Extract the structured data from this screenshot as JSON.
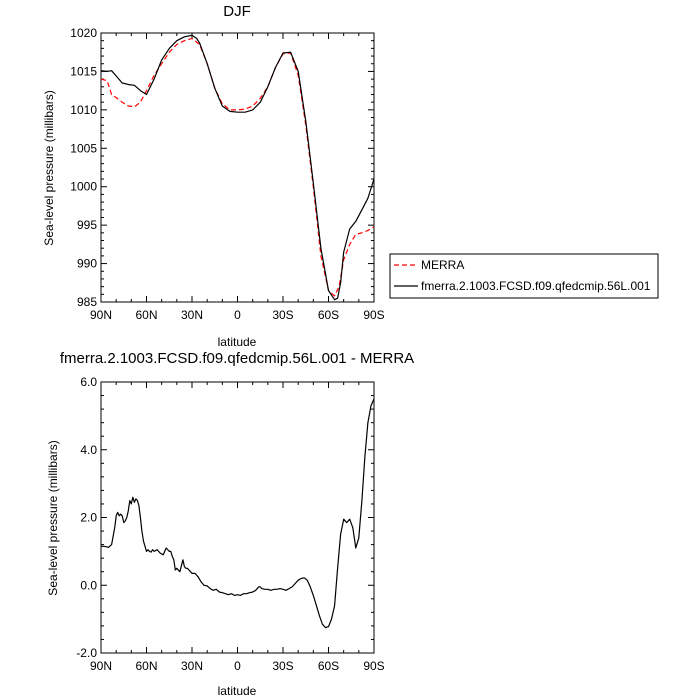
{
  "chart_data": [
    {
      "type": "line",
      "title": "DJF",
      "xlabel": "latitude",
      "ylabel": "Sea-level pressure (millibars)",
      "xlim": [
        -90,
        90
      ],
      "ylim": [
        985,
        1020
      ],
      "x_ticks": [
        {
          "value": -90,
          "label": "90N"
        },
        {
          "value": -60,
          "label": "60N"
        },
        {
          "value": -30,
          "label": "30N"
        },
        {
          "value": 0,
          "label": "0"
        },
        {
          "value": 30,
          "label": "30S"
        },
        {
          "value": 60,
          "label": "60S"
        },
        {
          "value": 90,
          "label": "90S"
        }
      ],
      "y_ticks": [
        985,
        990,
        995,
        1000,
        1005,
        1010,
        1015,
        1020
      ],
      "legend_position": "right",
      "series": [
        {
          "name": "MERRA",
          "color": "#ff0000",
          "dash": "dashed",
          "x": [
            -90,
            -86,
            -83,
            -80,
            -76,
            -72,
            -68,
            -64,
            -60,
            -55,
            -50,
            -45,
            -40,
            -35,
            -30,
            -25,
            -20,
            -15,
            -10,
            -5,
            0,
            5,
            10,
            15,
            20,
            25,
            30,
            35,
            40,
            45,
            50,
            55,
            60,
            64,
            67,
            70,
            74,
            78,
            82,
            86,
            90
          ],
          "y": [
            1014.0,
            1013.8,
            1012.0,
            1011.6,
            1011.0,
            1010.5,
            1010.4,
            1011.0,
            1012.5,
            1014.5,
            1016.0,
            1017.5,
            1018.5,
            1019.0,
            1019.3,
            1018.5,
            1016.0,
            1012.8,
            1010.8,
            1010.0,
            1010.0,
            1010.1,
            1010.5,
            1011.5,
            1013.0,
            1015.5,
            1017.3,
            1017.4,
            1014.5,
            1008.0,
            1000.0,
            991.0,
            986.5,
            985.8,
            987.0,
            990.5,
            992.5,
            993.8,
            994.0,
            994.3,
            994.8
          ]
        },
        {
          "name": "fmerra.2.1003.FCSD.f09.qfedcmip.56L.001",
          "color": "#000000",
          "dash": "solid",
          "x": [
            -90,
            -86,
            -83,
            -80,
            -76,
            -72,
            -68,
            -64,
            -60,
            -55,
            -50,
            -45,
            -40,
            -35,
            -30,
            -27,
            -25,
            -20,
            -15,
            -10,
            -5,
            0,
            5,
            10,
            15,
            20,
            25,
            30,
            35,
            40,
            45,
            50,
            55,
            60,
            64,
            66,
            68,
            70,
            74,
            78,
            82,
            86,
            90
          ],
          "y": [
            1015.1,
            1015.0,
            1015.1,
            1014.4,
            1013.5,
            1013.3,
            1013.2,
            1012.5,
            1012.0,
            1014.0,
            1016.5,
            1018.0,
            1019.0,
            1019.5,
            1019.7,
            1019.3,
            1018.7,
            1016.0,
            1012.8,
            1010.5,
            1009.8,
            1009.7,
            1009.7,
            1010.0,
            1011.0,
            1013.0,
            1015.5,
            1017.4,
            1017.5,
            1015.0,
            1008.5,
            1000.5,
            992.0,
            986.5,
            985.3,
            985.5,
            987.5,
            991.5,
            994.5,
            995.5,
            997.0,
            998.5,
            1001.0
          ]
        }
      ]
    },
    {
      "type": "line",
      "title": "fmerra.2.1003.FCSD.f09.qfedcmip.56L.001 - MERRA",
      "xlabel": "latitude",
      "ylabel": "Sea-level pressure (millibars)",
      "xlim": [
        -90,
        90
      ],
      "ylim": [
        -2.0,
        6.0
      ],
      "x_ticks": [
        {
          "value": -90,
          "label": "90N"
        },
        {
          "value": -60,
          "label": "60N"
        },
        {
          "value": -30,
          "label": "30N"
        },
        {
          "value": 0,
          "label": "0"
        },
        {
          "value": 30,
          "label": "30S"
        },
        {
          "value": 60,
          "label": "60S"
        },
        {
          "value": 90,
          "label": "90S"
        }
      ],
      "y_ticks": [
        {
          "value": -2.0,
          "label": "-2.0"
        },
        {
          "value": 0.0,
          "label": "0.0"
        },
        {
          "value": 2.0,
          "label": "2.0"
        },
        {
          "value": 4.0,
          "label": "4.0"
        },
        {
          "value": 6.0,
          "label": "6.0"
        }
      ],
      "series": [
        {
          "color": "#000000",
          "dash": "solid",
          "x": [
            -90,
            -88,
            -85,
            -83,
            -81,
            -80,
            -79,
            -78,
            -77,
            -76,
            -75,
            -74,
            -73,
            -72,
            -71,
            -70,
            -69,
            -68,
            -67,
            -66,
            -65,
            -64,
            -63,
            -62,
            -61,
            -60,
            -59,
            -58,
            -57,
            -56,
            -55,
            -53,
            -51,
            -49,
            -47,
            -45,
            -44,
            -43,
            -42,
            -41,
            -40,
            -38,
            -36,
            -35,
            -34,
            -33,
            -32,
            -31,
            -30,
            -28,
            -26,
            -24,
            -22,
            -20,
            -18,
            -16,
            -14,
            -12,
            -10,
            -8,
            -6,
            -4,
            -2,
            0,
            2,
            4,
            6,
            8,
            10,
            12,
            14,
            15,
            16,
            18,
            20,
            22,
            24,
            26,
            28,
            30,
            32,
            34,
            36,
            38,
            40,
            42,
            44,
            46,
            48,
            50,
            52,
            54,
            56,
            58,
            60,
            62,
            64,
            66,
            68,
            70,
            72,
            74,
            76,
            78,
            80,
            82,
            84,
            86,
            88,
            90
          ],
          "y": [
            1.15,
            1.15,
            1.12,
            1.2,
            1.7,
            2.05,
            2.15,
            2.05,
            2.1,
            2.05,
            1.85,
            1.9,
            2.0,
            2.2,
            2.5,
            2.4,
            2.6,
            2.45,
            2.55,
            2.5,
            2.35,
            2.0,
            1.6,
            1.3,
            1.15,
            1.0,
            1.05,
            1.0,
            0.98,
            1.05,
            1.0,
            1.05,
            0.95,
            0.9,
            1.1,
            1.0,
            1.0,
            0.85,
            0.75,
            0.45,
            0.5,
            0.4,
            0.75,
            0.55,
            0.5,
            0.5,
            0.45,
            0.4,
            0.35,
            0.35,
            0.25,
            0.1,
            0.0,
            -0.02,
            -0.1,
            -0.15,
            -0.12,
            -0.2,
            -0.22,
            -0.25,
            -0.28,
            -0.25,
            -0.3,
            -0.28,
            -0.3,
            -0.25,
            -0.25,
            -0.22,
            -0.2,
            -0.15,
            -0.05,
            -0.05,
            -0.1,
            -0.12,
            -0.12,
            -0.15,
            -0.12,
            -0.12,
            -0.1,
            -0.12,
            -0.15,
            -0.1,
            -0.05,
            0.05,
            0.15,
            0.2,
            0.22,
            0.15,
            -0.05,
            -0.3,
            -0.6,
            -0.9,
            -1.15,
            -1.25,
            -1.22,
            -1.0,
            -0.6,
            0.5,
            1.5,
            1.95,
            1.85,
            1.95,
            1.7,
            1.1,
            1.4,
            2.5,
            3.8,
            4.8,
            5.3,
            5.5
          ]
        }
      ]
    }
  ]
}
